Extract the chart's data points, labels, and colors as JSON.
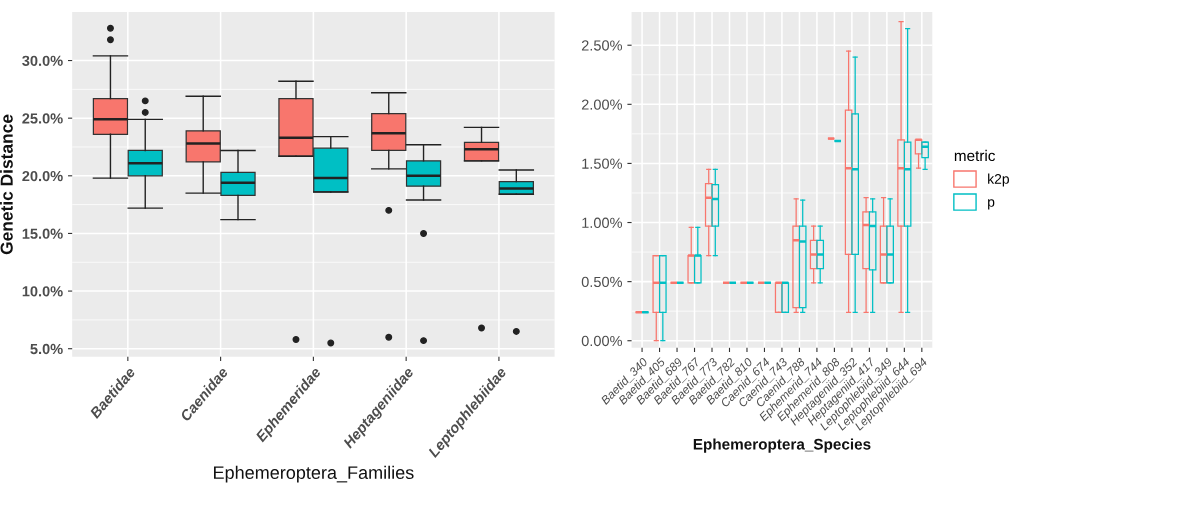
{
  "chart_data": [
    {
      "type": "box",
      "xlabel": "Ephemeroptera_Families",
      "ylabel": "Genetic Distance",
      "categories": [
        "Baetidae",
        "Caenidae",
        "Ephemeridae",
        "Heptageniidae",
        "Leptophlebiidae"
      ],
      "ylim": [
        4.3,
        34.2
      ],
      "yticks": [
        {
          "value": 5,
          "label": "5.0%"
        },
        {
          "value": 10,
          "label": "10.0%"
        },
        {
          "value": 15,
          "label": "15.0%"
        },
        {
          "value": 20,
          "label": "20.0%"
        },
        {
          "value": 25,
          "label": "25.0%"
        },
        {
          "value": 30,
          "label": "30.0%"
        }
      ],
      "grid": true,
      "legend": false,
      "series": [
        {
          "color": "#f8766d",
          "boxes": [
            {
              "low": 19.8,
              "q1": 23.6,
              "median": 24.9,
              "q3": 26.7,
              "high": 30.4,
              "outliers": [
                31.8,
                32.8
              ]
            },
            {
              "low": 18.5,
              "q1": 21.2,
              "median": 22.8,
              "q3": 23.9,
              "high": 26.9
            },
            {
              "low": 21.7,
              "q1": 21.7,
              "median": 23.3,
              "q3": 26.7,
              "high": 28.2,
              "outliers": [
                5.8
              ]
            },
            {
              "low": 20.6,
              "q1": 22.2,
              "median": 23.7,
              "q3": 25.4,
              "high": 27.2,
              "outliers": [
                17.0,
                6.0
              ]
            },
            {
              "low": 21.3,
              "q1": 21.3,
              "median": 22.3,
              "q3": 22.9,
              "high": 24.2,
              "outliers": [
                6.8
              ]
            }
          ]
        },
        {
          "color": "#00bfc4",
          "boxes": [
            {
              "low": 17.2,
              "q1": 20.0,
              "median": 21.1,
              "q3": 22.2,
              "high": 24.9,
              "outliers": [
                25.5,
                26.5
              ]
            },
            {
              "low": 16.2,
              "q1": 18.3,
              "median": 19.4,
              "q3": 20.3,
              "high": 22.2
            },
            {
              "low": 18.6,
              "q1": 18.6,
              "median": 19.8,
              "q3": 22.4,
              "high": 23.4,
              "outliers": [
                5.5
              ]
            },
            {
              "low": 17.9,
              "q1": 19.1,
              "median": 20.0,
              "q3": 21.3,
              "high": 22.7,
              "outliers": [
                15.0,
                5.7
              ]
            },
            {
              "low": 18.4,
              "q1": 18.4,
              "median": 18.9,
              "q3": 19.5,
              "high": 20.5,
              "outliers": [
                6.5
              ]
            }
          ]
        }
      ]
    },
    {
      "type": "box",
      "xlabel": "Ephemeroptera_Species",
      "legend_title": "metric",
      "categories": [
        "Baetid_340",
        "Baetid_405",
        "Baetid_689",
        "Baetid_767",
        "Baetid_773",
        "Baetid_782",
        "Baetid_810",
        "Caenid_674",
        "Caenid_743",
        "Caenid_788",
        "Ephemerid_744",
        "Ephemerid_808",
        "Heptageniid_352",
        "Heptageniid_417",
        "Leptophlebiid_349",
        "Leptophlebiid_644",
        "Leptophlebiid_694"
      ],
      "ylim": [
        -0.06,
        2.78
      ],
      "yticks": [
        {
          "value": 0,
          "label": "0.00%"
        },
        {
          "value": 0.5,
          "label": "0.50%"
        },
        {
          "value": 1,
          "label": "1.00%"
        },
        {
          "value": 1.5,
          "label": "1.50%"
        },
        {
          "value": 2,
          "label": "2.00%"
        },
        {
          "value": 2.5,
          "label": "2.50%"
        }
      ],
      "grid": true,
      "legend": "right",
      "series": [
        {
          "name": "k2p",
          "color": "#f8766d",
          "boxes": [
            {
              "low": 0.24,
              "q1": 0.24,
              "median": 0.24,
              "q3": 0.24,
              "high": 0.24
            },
            {
              "low": 0,
              "q1": 0.24,
              "median": 0.49,
              "q3": 0.72,
              "high": 0.72
            },
            {
              "low": 0.49,
              "q1": 0.49,
              "median": 0.49,
              "q3": 0.49,
              "high": 0.49
            },
            {
              "low": 0.49,
              "q1": 0.49,
              "median": 0.72,
              "q3": 0.72,
              "high": 0.96
            },
            {
              "low": 0.72,
              "q1": 0.97,
              "median": 1.21,
              "q3": 1.33,
              "high": 1.45
            },
            {
              "low": 0.49,
              "q1": 0.49,
              "median": 0.49,
              "q3": 0.49,
              "high": 0.49
            },
            {
              "low": 0.49,
              "q1": 0.49,
              "median": 0.49,
              "q3": 0.49,
              "high": 0.49
            },
            {
              "low": 0.49,
              "q1": 0.49,
              "median": 0.49,
              "q3": 0.49,
              "high": 0.49
            },
            {
              "low": 0.24,
              "q1": 0.24,
              "median": 0.49,
              "q3": 0.49,
              "high": 0.49
            },
            {
              "low": 0.24,
              "q1": 0.28,
              "median": 0.85,
              "q3": 0.97,
              "high": 1.2
            },
            {
              "low": 0.49,
              "q1": 0.61,
              "median": 0.73,
              "q3": 0.85,
              "high": 0.97
            },
            {
              "low": 1.71,
              "q1": 1.71,
              "median": 1.71,
              "q3": 1.71,
              "high": 1.71
            },
            {
              "low": 0.24,
              "q1": 0.73,
              "median": 1.46,
              "q3": 1.95,
              "high": 2.45
            },
            {
              "low": 0.24,
              "q1": 0.61,
              "median": 0.98,
              "q3": 1.09,
              "high": 1.21
            },
            {
              "low": 0.49,
              "q1": 0.49,
              "median": 0.73,
              "q3": 0.97,
              "high": 1.21
            },
            {
              "low": 0.24,
              "q1": 0.97,
              "median": 1.46,
              "q3": 1.7,
              "high": 2.7
            },
            {
              "low": 1.46,
              "q1": 1.58,
              "median": 1.7,
              "q3": 1.7,
              "high": 1.7
            }
          ]
        },
        {
          "name": "p",
          "color": "#00bfc4",
          "boxes": [
            {
              "low": 0.24,
              "q1": 0.24,
              "median": 0.24,
              "q3": 0.24,
              "high": 0.24
            },
            {
              "low": 0,
              "q1": 0.24,
              "median": 0.49,
              "q3": 0.72,
              "high": 0.72
            },
            {
              "low": 0.49,
              "q1": 0.49,
              "median": 0.49,
              "q3": 0.49,
              "high": 0.49
            },
            {
              "low": 0.49,
              "q1": 0.49,
              "median": 0.72,
              "q3": 0.72,
              "high": 0.96
            },
            {
              "low": 0.72,
              "q1": 0.97,
              "median": 1.2,
              "q3": 1.32,
              "high": 1.45
            },
            {
              "low": 0.49,
              "q1": 0.49,
              "median": 0.49,
              "q3": 0.49,
              "high": 0.49
            },
            {
              "low": 0.49,
              "q1": 0.49,
              "median": 0.49,
              "q3": 0.49,
              "high": 0.49
            },
            {
              "low": 0.49,
              "q1": 0.49,
              "median": 0.49,
              "q3": 0.49,
              "high": 0.49
            },
            {
              "low": 0.24,
              "q1": 0.24,
              "median": 0.49,
              "q3": 0.49,
              "high": 0.49
            },
            {
              "low": 0.24,
              "q1": 0.28,
              "median": 0.84,
              "q3": 0.97,
              "high": 1.19
            },
            {
              "low": 0.49,
              "q1": 0.61,
              "median": 0.73,
              "q3": 0.85,
              "high": 0.97
            },
            {
              "low": 1.69,
              "q1": 1.69,
              "median": 1.69,
              "q3": 1.69,
              "high": 1.69
            },
            {
              "low": 0.24,
              "q1": 0.73,
              "median": 1.45,
              "q3": 1.92,
              "high": 2.4
            },
            {
              "low": 0.24,
              "q1": 0.6,
              "median": 0.97,
              "q3": 1.09,
              "high": 1.2
            },
            {
              "low": 0.49,
              "q1": 0.49,
              "median": 0.73,
              "q3": 0.97,
              "high": 1.2
            },
            {
              "low": 0.24,
              "q1": 0.97,
              "median": 1.45,
              "q3": 1.68,
              "high": 2.64
            },
            {
              "low": 1.45,
              "q1": 1.55,
              "median": 1.64,
              "q3": 1.68,
              "high": 1.68
            }
          ]
        }
      ]
    }
  ]
}
